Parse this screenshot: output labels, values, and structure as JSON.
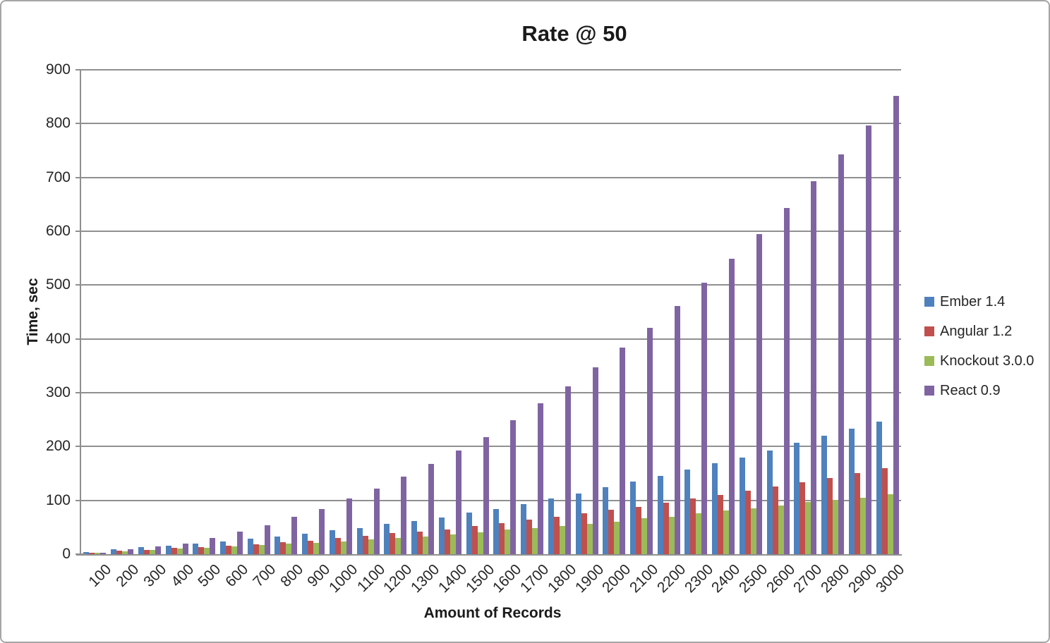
{
  "chart_data": {
    "type": "bar",
    "title": "Rate @ 50",
    "xlabel": "Amount of Records",
    "ylabel": "Time, sec",
    "ylim": [
      0,
      900
    ],
    "ytick_step": 100,
    "grid": true,
    "legend_position": "right",
    "categories": [
      100,
      200,
      300,
      400,
      500,
      600,
      700,
      800,
      900,
      1000,
      1100,
      1200,
      1300,
      1400,
      1500,
      1600,
      1700,
      1800,
      1900,
      2000,
      2100,
      2200,
      2300,
      2400,
      2500,
      2600,
      2700,
      2800,
      2900,
      3000
    ],
    "series": [
      {
        "name": "Ember 1.4",
        "color": "#4F81BD",
        "values": [
          4,
          9,
          13,
          16,
          20,
          24,
          29,
          33,
          38,
          44,
          49,
          56,
          62,
          68,
          77,
          84,
          93,
          104,
          113,
          124,
          135,
          145,
          157,
          169,
          180,
          193,
          207,
          220,
          233,
          246
        ]
      },
      {
        "name": "Angular 1.2",
        "color": "#C0504D",
        "values": [
          3,
          6,
          8,
          12,
          13,
          16,
          19,
          22,
          25,
          30,
          34,
          39,
          42,
          46,
          53,
          58,
          64,
          70,
          76,
          82,
          88,
          96,
          103,
          110,
          118,
          126,
          133,
          142,
          151,
          160
        ]
      },
      {
        "name": "Knockout 3.0.0",
        "color": "#9BBB59",
        "values": [
          2,
          5,
          8,
          10,
          12,
          15,
          17,
          20,
          21,
          24,
          28,
          30,
          33,
          37,
          41,
          46,
          48,
          52,
          56,
          60,
          67,
          70,
          76,
          81,
          85,
          91,
          97,
          101,
          105,
          111
        ]
      },
      {
        "name": "React 0.9",
        "color": "#8064A2",
        "values": [
          3,
          9,
          15,
          20,
          30,
          42,
          54,
          69,
          84,
          103,
          122,
          144,
          168,
          192,
          218,
          249,
          280,
          312,
          347,
          384,
          420,
          461,
          505,
          549,
          595,
          643,
          693,
          743,
          797,
          852
        ]
      }
    ],
    "styles": {
      "grid_color": "#909090",
      "axis_color": "#8f8f8f",
      "text_color": "#262626",
      "background": "#ffffff",
      "border_color": "#a6a6a6"
    }
  }
}
